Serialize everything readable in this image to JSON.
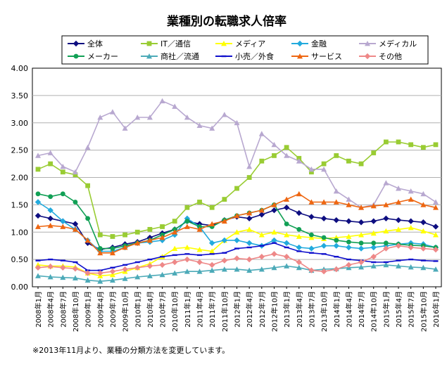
{
  "chart_data": {
    "type": "line",
    "title": "業種別の転職求人倍率",
    "footnote": "※2013年11月より、業種の分類方法を変更しています。",
    "ylim": [
      0,
      4
    ],
    "yticks": [
      "0.00",
      "0.50",
      "1.00",
      "1.50",
      "2.00",
      "2.50",
      "3.00",
      "3.50",
      "4.00"
    ],
    "xticks": [
      "2008年1月",
      "2008年4月",
      "2008年7月",
      "2008年10月",
      "2009年1月",
      "2009年4月",
      "2009年7月",
      "2009年10月",
      "2010年1月",
      "2010年4月",
      "2010年7月",
      "2010年10月",
      "2011年1月",
      "2011年4月",
      "2011年7月",
      "2011年10月",
      "2012年1月",
      "2012年4月",
      "2012年7月",
      "2012年10月",
      "2013年1月",
      "2013年4月",
      "2013年7月",
      "2013年10月",
      "2014年1月",
      "2014年4月",
      "2014年7月",
      "2014年10月",
      "2015年1月",
      "2015年4月",
      "2015年7月",
      "2015年10月",
      "2016年1月"
    ],
    "series": [
      {
        "name": "全体",
        "color": "#0d0d80",
        "marker": "diamond",
        "values": [
          1.3,
          1.25,
          1.2,
          1.15,
          0.8,
          0.68,
          0.72,
          0.78,
          0.82,
          0.9,
          0.98,
          1.05,
          1.2,
          1.15,
          1.12,
          1.22,
          1.28,
          1.25,
          1.32,
          1.4,
          1.45,
          1.35,
          1.28,
          1.25,
          1.22,
          1.2,
          1.18,
          1.2,
          1.25,
          1.22,
          1.2,
          1.18,
          1.1
        ]
      },
      {
        "name": "IT／通信",
        "color": "#99cc33",
        "marker": "square",
        "values": [
          2.15,
          2.25,
          2.1,
          2.05,
          1.85,
          0.95,
          0.92,
          0.95,
          1.0,
          1.05,
          1.1,
          1.2,
          1.45,
          1.55,
          1.45,
          1.6,
          1.8,
          2.0,
          2.3,
          2.4,
          2.55,
          2.35,
          2.1,
          2.25,
          2.4,
          2.3,
          2.25,
          2.45,
          2.65,
          2.65,
          2.6,
          2.55,
          2.6
        ]
      },
      {
        "name": "メディア",
        "color": "#ffff00",
        "marker": "triangle",
        "values": [
          0.4,
          0.38,
          0.38,
          0.36,
          0.25,
          0.2,
          0.22,
          0.28,
          0.35,
          0.42,
          0.55,
          0.7,
          0.72,
          0.68,
          0.65,
          0.85,
          1.0,
          1.05,
          0.95,
          1.0,
          0.95,
          0.92,
          0.9,
          0.88,
          0.9,
          0.92,
          0.95,
          0.98,
          1.02,
          1.05,
          1.08,
          1.02,
          0.95
        ]
      },
      {
        "name": "金融",
        "color": "#22aadd",
        "marker": "diamond",
        "values": [
          1.55,
          1.4,
          1.2,
          1.05,
          0.85,
          0.65,
          0.65,
          0.72,
          0.8,
          0.82,
          0.85,
          0.95,
          1.25,
          1.1,
          0.8,
          0.85,
          0.85,
          0.8,
          0.75,
          0.85,
          0.8,
          0.72,
          0.7,
          0.75,
          0.75,
          0.72,
          0.7,
          0.72,
          0.75,
          0.78,
          0.8,
          0.78,
          0.72
        ]
      },
      {
        "name": "メディカル",
        "color": "#b8a8d0",
        "marker": "triangle",
        "values": [
          2.4,
          2.45,
          2.2,
          2.1,
          2.55,
          3.1,
          3.2,
          2.9,
          3.1,
          3.1,
          3.4,
          3.3,
          3.1,
          2.95,
          2.9,
          3.15,
          3.0,
          2.2,
          2.8,
          2.6,
          2.4,
          2.3,
          2.15,
          2.15,
          1.75,
          1.6,
          1.45,
          1.5,
          1.9,
          1.8,
          1.75,
          1.7,
          1.55
        ]
      },
      {
        "name": "メーカー",
        "color": "#11a055",
        "marker": "circle",
        "values": [
          1.7,
          1.65,
          1.7,
          1.55,
          1.25,
          0.7,
          0.7,
          0.75,
          0.8,
          0.85,
          0.95,
          1.05,
          1.2,
          1.1,
          1.1,
          1.22,
          1.3,
          1.35,
          1.4,
          1.5,
          1.15,
          1.05,
          0.95,
          0.9,
          0.85,
          0.82,
          0.8,
          0.8,
          0.8,
          0.78,
          0.76,
          0.75,
          0.72
        ]
      },
      {
        "name": "商社／流通",
        "color": "#4caab8",
        "marker": "triangle",
        "values": [
          0.2,
          0.18,
          0.17,
          0.16,
          0.12,
          0.1,
          0.12,
          0.15,
          0.18,
          0.2,
          0.22,
          0.25,
          0.28,
          0.28,
          0.3,
          0.32,
          0.32,
          0.3,
          0.32,
          0.35,
          0.38,
          0.35,
          0.3,
          0.32,
          0.33,
          0.35,
          0.36,
          0.38,
          0.4,
          0.38,
          0.36,
          0.35,
          0.32
        ]
      },
      {
        "name": "小売／外食",
        "color": "#1010cc",
        "marker": "dash",
        "values": [
          0.48,
          0.5,
          0.48,
          0.45,
          0.3,
          0.3,
          0.35,
          0.4,
          0.45,
          0.5,
          0.55,
          0.58,
          0.6,
          0.58,
          0.6,
          0.62,
          0.7,
          0.72,
          0.75,
          0.8,
          0.72,
          0.65,
          0.62,
          0.6,
          0.55,
          0.5,
          0.48,
          0.45,
          0.45,
          0.48,
          0.5,
          0.48,
          0.47
        ]
      },
      {
        "name": "サービス",
        "color": "#ee6611",
        "marker": "triangle",
        "values": [
          1.1,
          1.12,
          1.1,
          1.05,
          0.85,
          0.62,
          0.62,
          0.72,
          0.8,
          0.85,
          0.9,
          1.0,
          1.1,
          1.05,
          1.15,
          1.2,
          1.3,
          1.35,
          1.4,
          1.5,
          1.6,
          1.7,
          1.55,
          1.55,
          1.55,
          1.5,
          1.45,
          1.48,
          1.5,
          1.55,
          1.6,
          1.5,
          1.45
        ]
      },
      {
        "name": "その他",
        "color": "#ee8888",
        "marker": "diamond",
        "values": [
          0.35,
          0.37,
          0.35,
          0.33,
          0.25,
          0.25,
          0.28,
          0.32,
          0.35,
          0.38,
          0.4,
          0.45,
          0.5,
          0.45,
          0.4,
          0.48,
          0.52,
          0.5,
          0.55,
          0.6,
          0.55,
          0.45,
          0.3,
          0.28,
          0.32,
          0.4,
          0.45,
          0.55,
          0.7,
          0.75,
          0.72,
          0.7,
          0.68
        ]
      }
    ]
  }
}
